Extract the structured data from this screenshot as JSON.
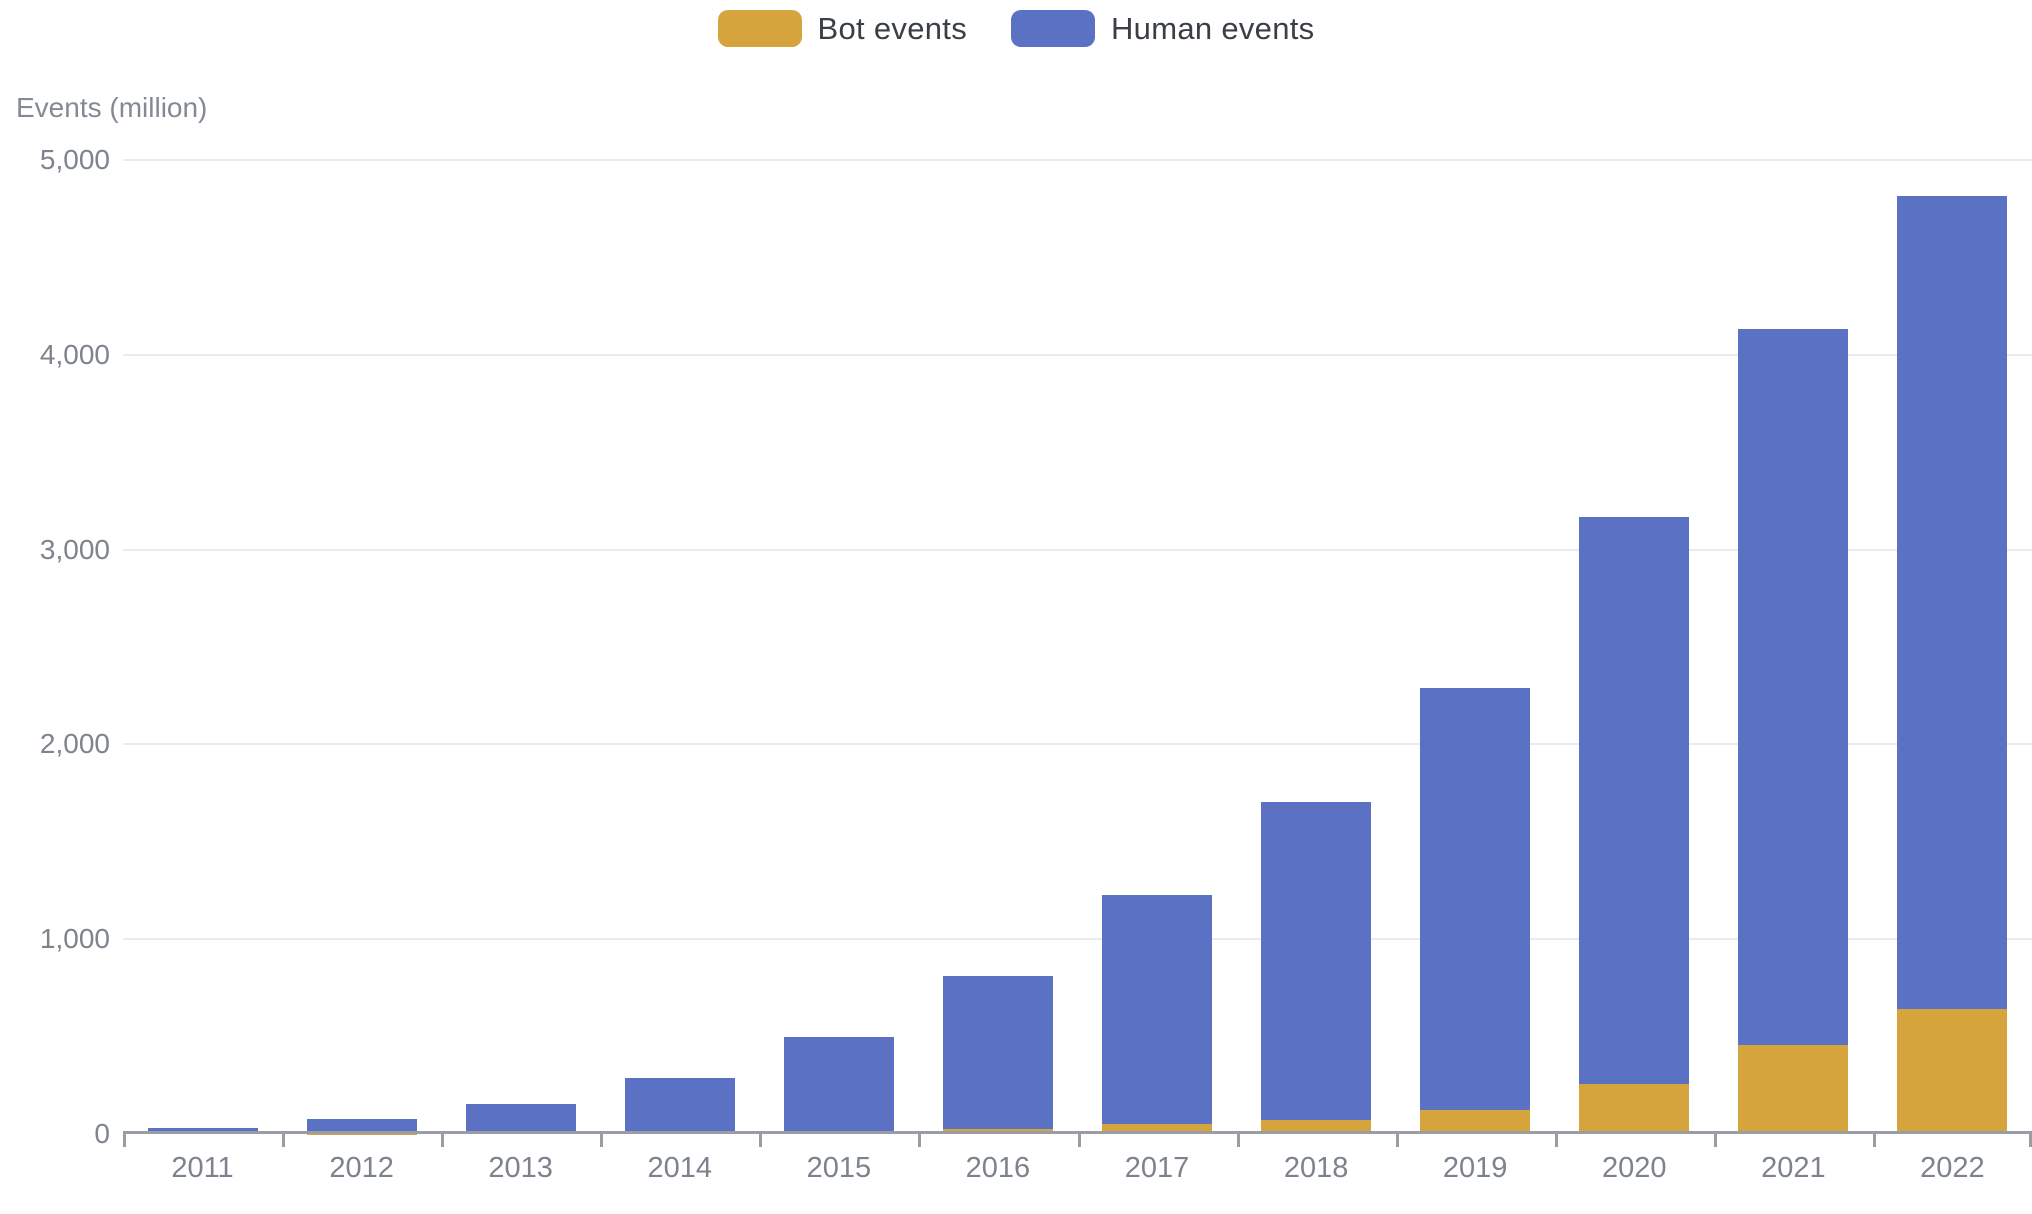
{
  "legend": {
    "items": [
      {
        "label": "Bot events",
        "color": "#d5a43c"
      },
      {
        "label": "Human events",
        "color": "#5b71c4"
      }
    ]
  },
  "y_axis": {
    "title": "Events (million)",
    "ticks": [
      {
        "value": 0,
        "label": "0"
      },
      {
        "value": 1000,
        "label": "1,000"
      },
      {
        "value": 2000,
        "label": "2,000"
      },
      {
        "value": 3000,
        "label": "3,000"
      },
      {
        "value": 4000,
        "label": "4,000"
      },
      {
        "value": 5000,
        "label": "5,000"
      }
    ]
  },
  "chart_data": {
    "type": "bar",
    "stacked": true,
    "title": "",
    "xlabel": "",
    "ylabel": "Events (million)",
    "ylim": [
      0,
      5000
    ],
    "ytick_step": 1000,
    "grid": true,
    "legend_position": "top",
    "categories": [
      "2011",
      "2012",
      "2013",
      "2014",
      "2015",
      "2016",
      "2017",
      "2018",
      "2019",
      "2020",
      "2021",
      "2022"
    ],
    "series": [
      {
        "name": "Bot events",
        "color": "#d5a43c",
        "values": [
          0,
          1,
          3,
          6,
          13,
          25,
          50,
          72,
          122,
          255,
          455,
          640
        ]
      },
      {
        "name": "Human events",
        "color": "#5b71c4",
        "values": [
          30,
          74,
          150,
          282,
          485,
          785,
          1175,
          1630,
          2168,
          2910,
          3680,
          4175
        ]
      }
    ],
    "totals": [
      30,
      75,
      153,
      288,
      498,
      810,
      1225,
      1702,
      2290,
      3165,
      4135,
      4815
    ]
  }
}
